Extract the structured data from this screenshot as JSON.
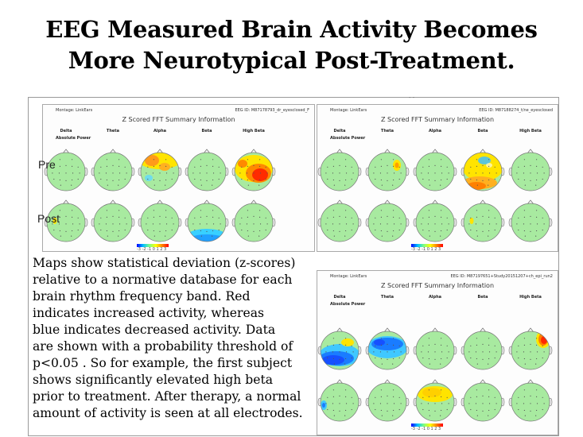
{
  "title": {
    "line1": "EEG Measured Brain Activity Becomes",
    "line2": "More Neurotypical Post-Treatment."
  },
  "figure": {
    "row_labels": {
      "pre": "Pre",
      "post": "Post"
    },
    "panels": [
      {
        "id": "subject1",
        "montage": "Montage: LinkEars",
        "eeg_id": "EEG ID: M87178793_dr_eyesclosed_F",
        "panel_title": "Z Scored FFT Summary Information",
        "bands": [
          "Delta",
          "Theta",
          "Alpha",
          "Beta",
          "High Beta"
        ],
        "measure": "Absolute Power",
        "scale_ticks": "-3 -2 -1 0 1 2 3",
        "maps": [
          [
            "green",
            "green",
            "alpha-warm",
            "green",
            "highbeta-red"
          ],
          [
            "green-dot",
            "green",
            "green",
            "beta-blue-bottom",
            "green"
          ]
        ]
      },
      {
        "id": "subject2",
        "montage": "Montage: LinkEars",
        "eeg_id": "EEG ID: M87188274_t/ne_eyesclosed",
        "panel_title": "Z Scored FFT Summary Information",
        "bands": [
          "Delta",
          "Theta",
          "Alpha",
          "Beta",
          "High Beta"
        ],
        "measure": "Absolute Power",
        "scale_ticks": "-3 -2 -1 0 1 2 3",
        "maps": [
          [
            "green",
            "theta-yellow-spot",
            "green",
            "beta-warm",
            "green"
          ],
          [
            "green",
            "green",
            "green",
            "green-dot",
            "green"
          ]
        ]
      },
      {
        "id": "subject3",
        "montage": "Montage: LinkEars",
        "eeg_id": "EEG ID: M87197651+Study20151207+ch_epi_run2",
        "panel_title": "Z Scored FFT Summary Information",
        "bands": [
          "Delta",
          "Theta",
          "Alpha",
          "Beta",
          "High Beta"
        ],
        "measure": "Absolute Power",
        "scale_ticks": "-3 -2 -1 0 1 2 3",
        "maps": [
          [
            "delta-blue",
            "theta-blue",
            "green",
            "green",
            "highbeta-red-right"
          ],
          [
            "delta-blue-dot",
            "green",
            "alpha-yellow",
            "green",
            "green"
          ]
        ]
      }
    ],
    "caption": [
      "Maps show statistical deviation (z-scores)",
      "relative to a normative database for each",
      "brain rhythm frequency band.  Red",
      "indicates increased activity, whereas",
      "blue indicates decreased activity.  Data",
      "are shown with a probability  threshold of",
      "p<0.05 .  So for example, the first subject",
      "shows significantly elevated high beta",
      "prior to treatment.  After therapy, a normal",
      "amount of activity is seen at all electrodes."
    ]
  },
  "colors": {
    "normal": "#a8eaa0",
    "elevated": "#ff2a00",
    "moderate": "#ffe400",
    "decreased": "#1650ff"
  }
}
